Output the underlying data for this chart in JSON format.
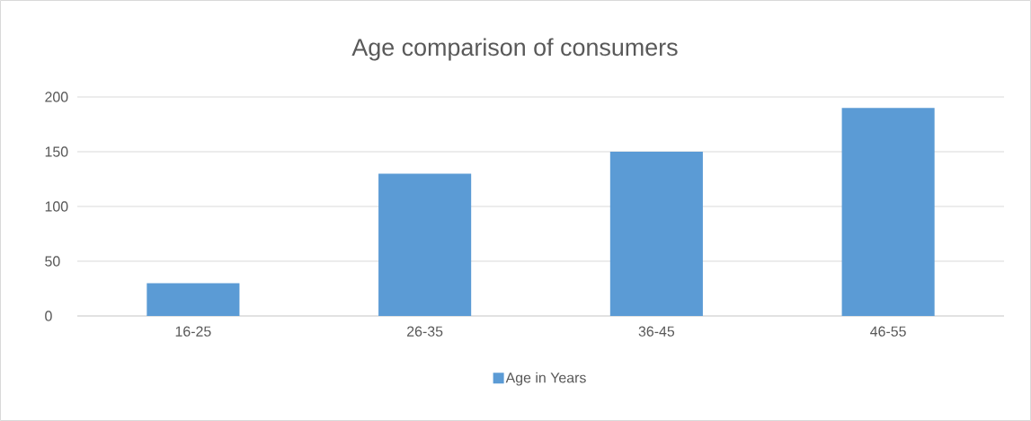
{
  "chart_data": {
    "type": "bar",
    "title": "Age comparison of consumers",
    "categories": [
      "16-25",
      "26-35",
      "36-45",
      "46-55"
    ],
    "series": [
      {
        "name": "Age in Years",
        "color": "#5b9bd5",
        "values": [
          30,
          130,
          150,
          190
        ]
      }
    ],
    "ylim": [
      0,
      200
    ],
    "yticks": [
      0,
      50,
      100,
      150,
      200
    ],
    "grid": "y",
    "legend": "bottom"
  }
}
